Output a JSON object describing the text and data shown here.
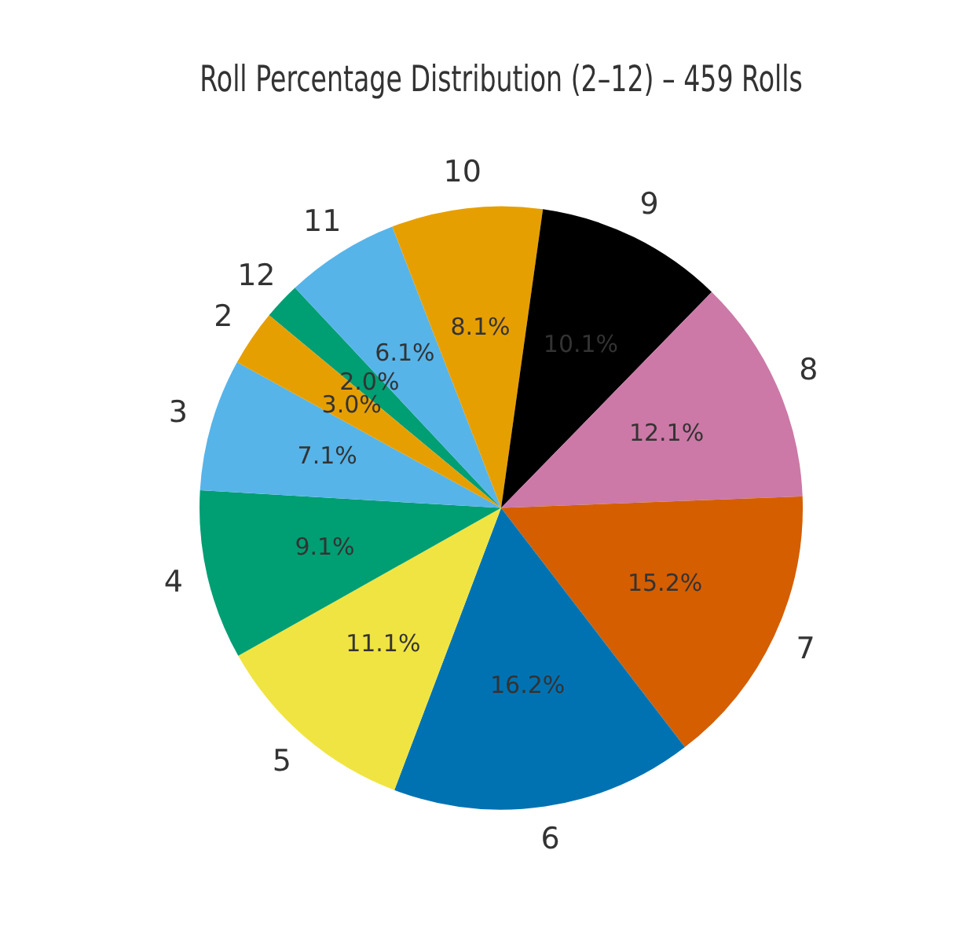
{
  "chart_data": {
    "type": "pie",
    "title": "Roll Percentage Distribution (2–12) – 459 Rolls",
    "categories": [
      "2",
      "3",
      "4",
      "5",
      "6",
      "7",
      "8",
      "9",
      "10",
      "11",
      "12"
    ],
    "values": [
      3.0,
      7.1,
      9.1,
      11.1,
      16.2,
      15.2,
      12.1,
      10.1,
      8.1,
      6.1,
      2.0
    ],
    "value_labels": [
      "3.0%",
      "7.1%",
      "9.1%",
      "11.1%",
      "16.2%",
      "15.2%",
      "12.1%",
      "10.1%",
      "8.1%",
      "6.1%",
      "2.0%"
    ],
    "colors": [
      "#e69f00",
      "#56b4e9",
      "#009e73",
      "#f0e442",
      "#0072b2",
      "#d55e00",
      "#cc79a7",
      "#000000",
      "#e69f00",
      "#56b4e9",
      "#009e73"
    ],
    "legend": false
  }
}
